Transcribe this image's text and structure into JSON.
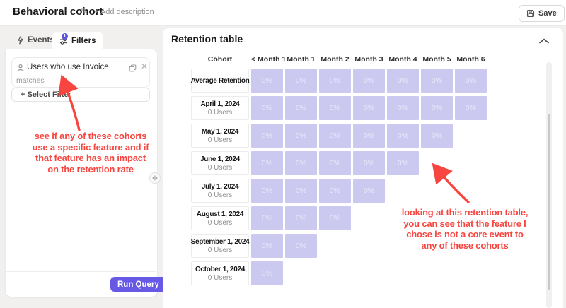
{
  "header": {
    "title": "Behavioral cohort",
    "edit_icon": "✎",
    "add_description_label": "+ Add description",
    "save_label": "Save"
  },
  "left_panel": {
    "events_tab_label": "Events",
    "filters_tab_label": "Filters",
    "filters_badge_count": "1",
    "filter_card": {
      "title": "Users who use Invoice",
      "operator": "matches",
      "close_icon": "✕"
    },
    "select_filter_label": "+ Select Filter",
    "run_query_label": "Run Query",
    "annotation_text": "see if any of these cohorts\nuse a specific feature and if\nthat feature has an impact\non the retention rate"
  },
  "main": {
    "title": "Retention table",
    "annotation_text": "looking at this retention table,\nyou can see that the feature I\nchose is not a core event to\nany of these cohorts",
    "retention_table": {
      "type": "table",
      "columns": [
        "Cohort",
        "< Month 1",
        "Month 1",
        "Month 2",
        "Month 3",
        "Month 4",
        "Month 5",
        "Month 6"
      ],
      "rows": [
        {
          "label": "Average Retention",
          "sub": "",
          "values": [
            "0%",
            "0%",
            "0%",
            "0%",
            "0%",
            "0%",
            "0%"
          ]
        },
        {
          "label": "April 1, 2024",
          "sub": "0 Users",
          "values": [
            "0%",
            "0%",
            "0%",
            "0%",
            "0%",
            "0%",
            "0%"
          ]
        },
        {
          "label": "May 1, 2024",
          "sub": "0 Users",
          "values": [
            "0%",
            "0%",
            "0%",
            "0%",
            "0%",
            "0%"
          ]
        },
        {
          "label": "June 1, 2024",
          "sub": "0 Users",
          "values": [
            "0%",
            "0%",
            "0%",
            "0%",
            "0%"
          ]
        },
        {
          "label": "July 1, 2024",
          "sub": "0 Users",
          "values": [
            "0%",
            "0%",
            "0%",
            "0%"
          ]
        },
        {
          "label": "August 1, 2024",
          "sub": "0 Users",
          "values": [
            "0%",
            "0%",
            "0%"
          ]
        },
        {
          "label": "September 1, 2024",
          "sub": "0 Users",
          "values": [
            "0%",
            "0%"
          ]
        },
        {
          "label": "October 1, 2024",
          "sub": "0 Users",
          "values": [
            "0%"
          ]
        }
      ]
    }
  },
  "colors": {
    "accent_purple": "#6759e6",
    "badge_purple": "#5a54d6",
    "cell_purple": "#cbc9f0",
    "annotation_red": "#f94540"
  }
}
